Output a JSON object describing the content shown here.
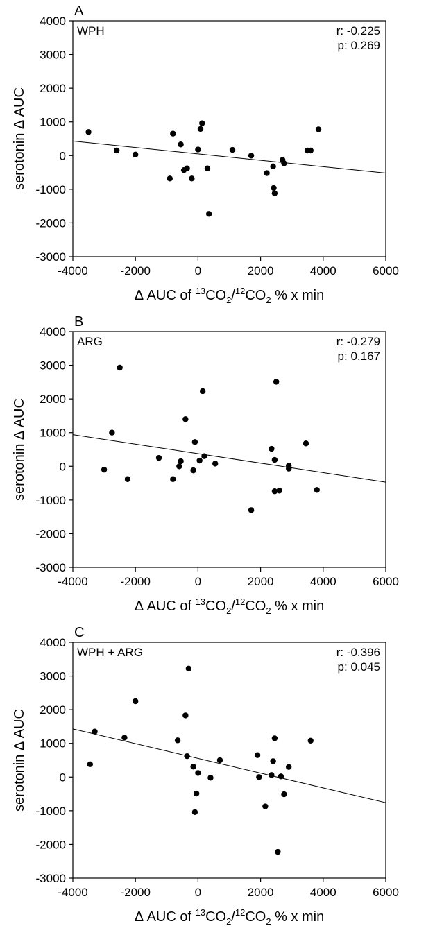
{
  "chart_data": [
    {
      "type": "scatter",
      "panel_label": "A",
      "group_label": "WPH",
      "stats": {
        "r": "r: -0.225",
        "p": "p: 0.269"
      },
      "xlabel": {
        "prefix": "Δ AUC of ",
        "sup1": "13",
        "base1": "CO",
        "sub1": "2",
        "slash": "/",
        "sup2": "12",
        "base2": "CO",
        "sub2": "2",
        "suffix": " % x min"
      },
      "ylabel": "serotonin Δ AUC",
      "xlim": [
        -4000,
        6000
      ],
      "ylim": [
        -3000,
        4000
      ],
      "xticks": [
        "-4000",
        "-2000",
        "0",
        "2000",
        "4000",
        "6000"
      ],
      "yticks": [
        "-3000",
        "-2000",
        "-1000",
        "0",
        "1000",
        "2000",
        "3000",
        "4000"
      ],
      "grid": false,
      "fit_line": {
        "x": [
          -4000,
          6000
        ],
        "y": [
          430,
          -520
        ]
      },
      "x": [
        -3500,
        -2600,
        -2000,
        -900,
        -800,
        -550,
        -450,
        -350,
        -200,
        0,
        80,
        130,
        300,
        350,
        1100,
        1700,
        2200,
        2400,
        2420,
        2450,
        2700,
        2750,
        3500,
        3600,
        3850
      ],
      "y": [
        700,
        150,
        30,
        -680,
        650,
        330,
        -430,
        -380,
        -680,
        180,
        790,
        960,
        -380,
        -1730,
        170,
        0,
        -520,
        -320,
        -960,
        -1120,
        -130,
        -230,
        150,
        150,
        780
      ]
    },
    {
      "type": "scatter",
      "panel_label": "B",
      "group_label": "ARG",
      "stats": {
        "r": "r: -0.279",
        "p": "p: 0.167"
      },
      "xlabel": {
        "prefix": "Δ AUC of ",
        "sup1": "13",
        "base1": "CO",
        "sub1": "2",
        "slash": "/",
        "sup2": "12",
        "base2": "CO",
        "sub2": "2",
        "suffix": " % x min"
      },
      "ylabel": "serotonin Δ AUC",
      "xlim": [
        -4000,
        6000
      ],
      "ylim": [
        -3000,
        4000
      ],
      "xticks": [
        "-4000",
        "-2000",
        "0",
        "2000",
        "4000",
        "6000"
      ],
      "yticks": [
        "-3000",
        "-2000",
        "-1000",
        "0",
        "1000",
        "2000",
        "3000",
        "4000"
      ],
      "grid": false,
      "fit_line": {
        "x": [
          -4000,
          6000
        ],
        "y": [
          940,
          -470
        ]
      },
      "x": [
        -3000,
        -2750,
        -2500,
        -2250,
        -1250,
        -800,
        -600,
        -550,
        -400,
        -150,
        -100,
        50,
        150,
        200,
        550,
        1700,
        2350,
        2450,
        2450,
        2500,
        2600,
        2900,
        2900,
        3450,
        3800
      ],
      "y": [
        -100,
        1000,
        2930,
        -380,
        250,
        -380,
        0,
        150,
        1400,
        -120,
        720,
        170,
        2230,
        300,
        80,
        -1300,
        520,
        190,
        -740,
        2510,
        -720,
        20,
        -70,
        680,
        -700
      ]
    },
    {
      "type": "scatter",
      "panel_label": "C",
      "group_label": "WPH + ARG",
      "stats": {
        "r": "r: -0.396",
        "p": "p: 0.045"
      },
      "xlabel": {
        "prefix": "Δ AUC of ",
        "sup1": "13",
        "base1": "CO",
        "sub1": "2",
        "slash": "/",
        "sup2": "12",
        "base2": "CO",
        "sub2": "2",
        "suffix": " % x min"
      },
      "ylabel": "serotonin Δ AUC",
      "xlim": [
        -4000,
        6000
      ],
      "ylim": [
        -3000,
        4000
      ],
      "xticks": [
        "-4000",
        "-2000",
        "0",
        "2000",
        "4000",
        "6000"
      ],
      "yticks": [
        "-3000",
        "-2000",
        "-1000",
        "0",
        "1000",
        "2000",
        "3000",
        "4000"
      ],
      "grid": false,
      "fit_line": {
        "x": [
          -4000,
          6000
        ],
        "y": [
          1430,
          -760
        ]
      },
      "x": [
        -3450,
        -3300,
        -2350,
        -2000,
        -650,
        -400,
        -350,
        -300,
        -150,
        -100,
        -50,
        0,
        400,
        700,
        1900,
        1950,
        2150,
        2350,
        2400,
        2450,
        2550,
        2650,
        2750,
        2900,
        3600
      ],
      "y": [
        380,
        1350,
        1170,
        2250,
        1090,
        1830,
        620,
        3220,
        310,
        -1040,
        -490,
        120,
        -20,
        500,
        650,
        0,
        -870,
        60,
        470,
        1150,
        -2220,
        20,
        -510,
        300,
        1080
      ]
    }
  ]
}
